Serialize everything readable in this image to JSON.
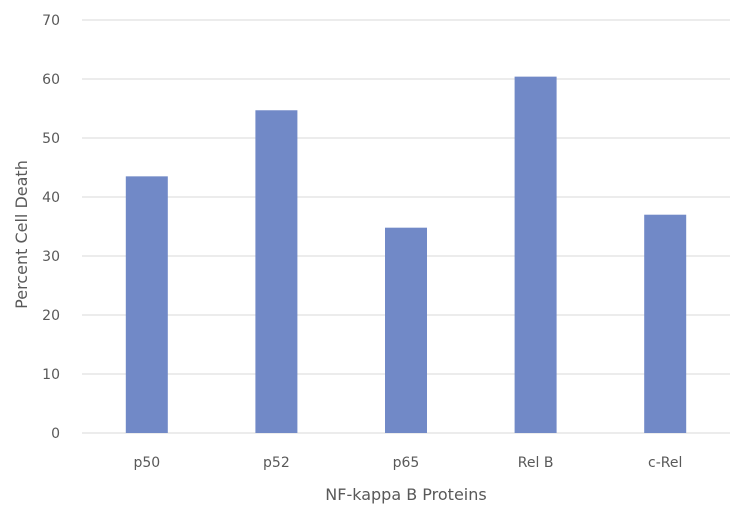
{
  "chart_data": {
    "type": "bar",
    "title": "",
    "xlabel": "NF-kappa B Proteins",
    "ylabel": "Percent Cell Death",
    "categories": [
      "p50",
      "p52",
      "p65",
      "Rel B",
      "c-Rel"
    ],
    "values": [
      43.5,
      54.7,
      34.8,
      60.4,
      37.0
    ],
    "ylim": [
      0,
      70
    ],
    "yticks": [
      "0",
      "10",
      "20",
      "30",
      "40",
      "50",
      "60",
      "70"
    ],
    "grid": true,
    "legend": "none",
    "bar_color": "#7189c7",
    "grid_color": "#d9d9d9",
    "text_color": "#595959"
  }
}
